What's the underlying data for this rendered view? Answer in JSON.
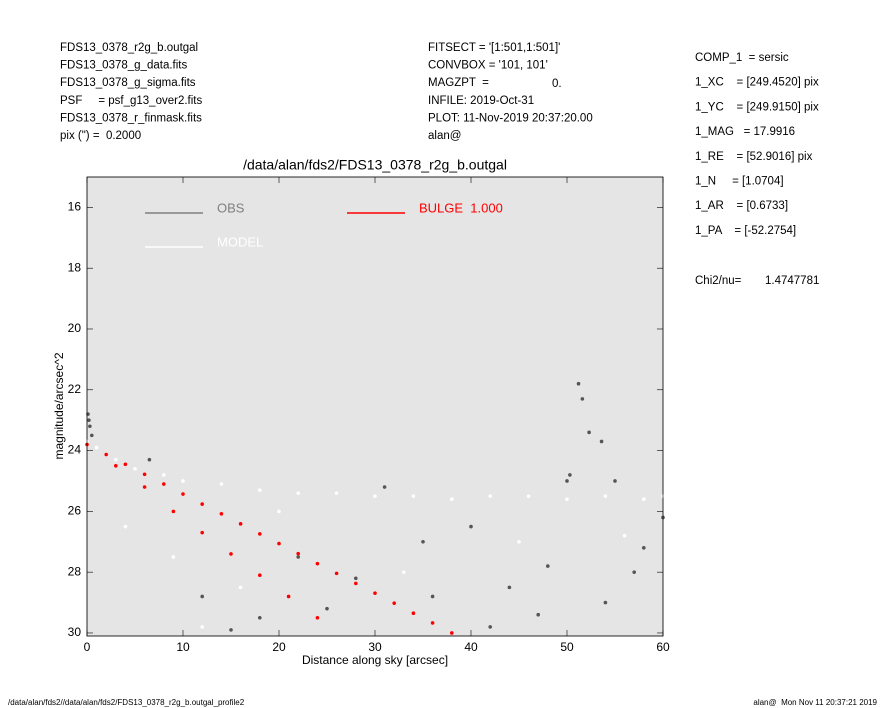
{
  "header": {
    "left": [
      "FDS13_0378_r2g_b.outgal",
      "FDS13_0378_g_data.fits",
      "FDS13_0378_g_sigma.fits",
      "PSF     = psf_g13_over2.fits",
      "FDS13_0378_r_finmask.fits",
      "pix (\") =  0.2000"
    ],
    "middle": [
      "FITSECT = '[1:501,1:501]'",
      "CONVBOX = '101, 101'",
      "MAGZPT  =",
      "INFILE: 2019-Oct-31",
      "PLOT: 11-Nov-2019 20:37:20.00",
      "alan@"
    ],
    "magzpt_value": "0.",
    "right": [
      "COMP_1  = sersic",
      "1_XC    = [249.4520] pix",
      "1_YC    = [249.9150] pix",
      "1_MAG   = 17.9916",
      "1_RE    = [52.9016] pix",
      "1_N     = [1.0704]",
      "1_AR    = [0.6733]",
      "1_PA    = [-52.2754]"
    ],
    "chi_label": "Chi2/nu=",
    "chi_value": "1.4747781"
  },
  "footer": {
    "left": "/data/alan/fds2//data/alan/fds2/FDS13_0378_r2g_b.outgal_profile2",
    "right": "alan@  Mon Nov 11 20:37:21 2019"
  },
  "chart_data": {
    "type": "scatter",
    "title": "/data/alan/fds2/FDS13_0378_r2g_b.outgal",
    "x_label": "Distance along sky [arcsec]",
    "y_label": "magnitude/arcsec^2",
    "xlim": [
      0,
      60
    ],
    "ylim": [
      30.1,
      15
    ],
    "xticks": [
      0,
      10,
      20,
      30,
      40,
      50,
      60
    ],
    "yticks": [
      16,
      18,
      20,
      22,
      24,
      26,
      28,
      30
    ],
    "background": "#e5e5e5",
    "series": [
      {
        "name": "MODEL",
        "color": "#ffffff",
        "x": [
          0,
          1,
          3,
          5,
          8,
          10,
          14,
          18,
          22,
          26,
          30,
          34,
          38,
          42,
          46,
          50,
          54,
          58,
          60,
          4,
          9,
          16,
          24,
          33,
          45,
          56,
          12,
          20
        ],
        "values": [
          23.7,
          23.9,
          24.3,
          24.6,
          24.8,
          25.0,
          25.1,
          25.3,
          25.4,
          25.4,
          25.5,
          25.5,
          25.6,
          25.5,
          25.5,
          25.6,
          25.5,
          25.6,
          25.5,
          26.5,
          27.5,
          28.5,
          29.5,
          28.0,
          27.0,
          26.8,
          29.8,
          26.0
        ]
      },
      {
        "name": "OBS",
        "color": "#555555",
        "x": [
          0.1,
          0.2,
          0.3,
          0.5,
          6.5,
          12,
          18,
          22,
          28,
          31,
          35,
          40,
          44,
          47,
          50,
          50.3,
          51.2,
          51.6,
          52.3,
          53.6,
          55,
          58,
          60,
          42,
          36,
          25,
          15,
          57,
          48,
          54
        ],
        "values": [
          22.8,
          23.0,
          23.2,
          23.5,
          24.3,
          28.8,
          29.5,
          27.5,
          28.2,
          25.2,
          27.0,
          26.5,
          28.5,
          29.4,
          25.0,
          24.8,
          21.8,
          22.3,
          23.4,
          23.7,
          25.0,
          27.2,
          26.2,
          29.8,
          28.8,
          29.2,
          29.9,
          28.0,
          27.8,
          29.0
        ]
      },
      {
        "name": "BULGE  1.000",
        "color": "#ff0000",
        "x": [
          0,
          2,
          4,
          6,
          8,
          10,
          12,
          14,
          16,
          18,
          20,
          22,
          24,
          26,
          28,
          30,
          32,
          34,
          36,
          38,
          3,
          6,
          9,
          12,
          15,
          18,
          21,
          24
        ],
        "values": [
          23.8,
          24.13,
          24.45,
          24.78,
          25.1,
          25.43,
          25.76,
          26.08,
          26.41,
          26.74,
          27.06,
          27.39,
          27.72,
          28.04,
          28.37,
          28.69,
          29.02,
          29.35,
          29.67,
          30.0,
          24.5,
          25.2,
          26.0,
          26.7,
          27.4,
          28.1,
          28.8,
          29.5
        ]
      }
    ],
    "legend_line_colors": [
      "#ffffff",
      "#808080",
      "#ff0000"
    ],
    "legend_text_colors": [
      "#ffffff",
      "#808080",
      "#ff0000"
    ]
  }
}
